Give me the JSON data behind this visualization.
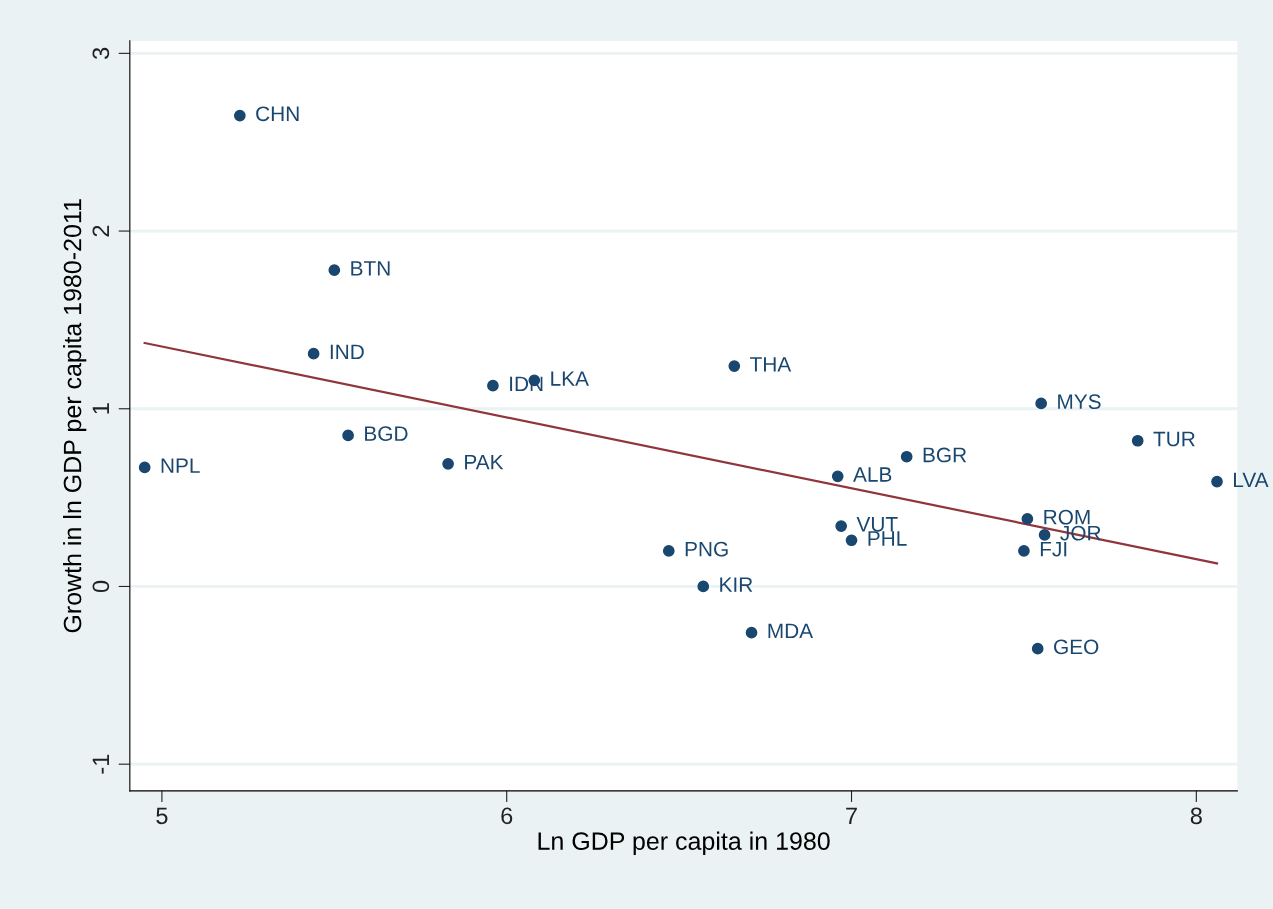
{
  "chart_data": {
    "type": "scatter",
    "xlabel": "Ln GDP per capita in 1980",
    "ylabel": "Growth in ln GDP per capita 1980-2011",
    "xlim": [
      4.907,
      8.119
    ],
    "xticks": [
      5,
      6,
      7,
      8
    ],
    "ylim": [
      -1.15,
      3.07
    ],
    "yticks": [
      -1,
      0,
      1,
      2,
      3
    ],
    "grid": "y",
    "legend": false,
    "series": [
      {
        "marker": "circle",
        "color": "#1a476f",
        "x": [
          5.226,
          5.5,
          5.44,
          5.96,
          6.08,
          6.66,
          5.54,
          4.95,
          5.83,
          7.55,
          7.83,
          8.06,
          7.16,
          6.96,
          6.97,
          7.0,
          7.51,
          7.56,
          7.5,
          6.47,
          6.57,
          6.71,
          7.54
        ],
        "values": [
          2.65,
          1.78,
          1.31,
          1.13,
          1.16,
          1.24,
          0.85,
          0.67,
          0.69,
          1.03,
          0.82,
          0.59,
          0.73,
          0.62,
          0.34,
          0.26,
          0.38,
          0.29,
          0.2,
          0.2,
          0.0,
          -0.26,
          -0.35
        ]
      },
      {
        "type": "line",
        "marker": "none",
        "color": "#90353b",
        "x": [
          4.95,
          8.06
        ],
        "values": [
          1.37,
          0.13
        ]
      }
    ],
    "annotations": [
      {
        "text": "CHN",
        "x": 5.226,
        "y": 2.65
      },
      {
        "text": "BTN",
        "x": 5.5,
        "y": 1.78
      },
      {
        "text": "IND",
        "x": 5.44,
        "y": 1.31
      },
      {
        "text": "IDN",
        "x": 5.96,
        "y": 1.13
      },
      {
        "text": "LKA",
        "x": 6.08,
        "y": 1.16
      },
      {
        "text": "THA",
        "x": 6.66,
        "y": 1.24
      },
      {
        "text": "BGD",
        "x": 5.54,
        "y": 0.85
      },
      {
        "text": "NPL",
        "x": 4.95,
        "y": 0.67
      },
      {
        "text": "PAK",
        "x": 5.83,
        "y": 0.69
      },
      {
        "text": "MYS",
        "x": 7.55,
        "y": 1.03
      },
      {
        "text": "TUR",
        "x": 7.83,
        "y": 0.82
      },
      {
        "text": "LVA",
        "x": 8.06,
        "y": 0.59
      },
      {
        "text": "BGR",
        "x": 7.16,
        "y": 0.73
      },
      {
        "text": "ALB",
        "x": 6.96,
        "y": 0.62
      },
      {
        "text": "VUT",
        "x": 6.97,
        "y": 0.34
      },
      {
        "text": "PHL",
        "x": 7.0,
        "y": 0.26
      },
      {
        "text": "ROM",
        "x": 7.51,
        "y": 0.38
      },
      {
        "text": "JOR",
        "x": 7.56,
        "y": 0.29
      },
      {
        "text": "FJI",
        "x": 7.5,
        "y": 0.2
      },
      {
        "text": "PNG",
        "x": 6.47,
        "y": 0.2
      },
      {
        "text": "KIR",
        "x": 6.57,
        "y": 0.0
      },
      {
        "text": "MDA",
        "x": 6.71,
        "y": -0.26
      },
      {
        "text": "GEO",
        "x": 7.54,
        "y": -0.35
      }
    ]
  }
}
